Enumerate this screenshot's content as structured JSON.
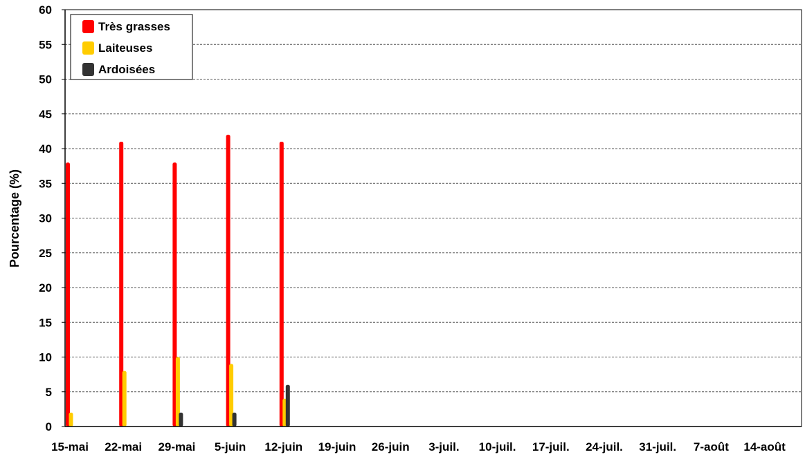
{
  "chart_data": {
    "type": "bar",
    "title": "",
    "xlabel": "",
    "ylabel": "Pourcentage (%)",
    "ylim": [
      0,
      60
    ],
    "yticks": [
      0,
      5,
      10,
      15,
      20,
      25,
      30,
      35,
      40,
      45,
      50,
      55,
      60
    ],
    "grid": true,
    "legend_position": "top-left",
    "categories": [
      "15-mai",
      "22-mai",
      "29-mai",
      "5-juin",
      "12-juin",
      "19-juin",
      "26-juin",
      "3-juil.",
      "10-juil.",
      "17-juil.",
      "24-juil.",
      "31-juil.",
      "7-août",
      "14-août"
    ],
    "series": [
      {
        "name": "Très grasses",
        "color": "#ff0000",
        "values": [
          38,
          41,
          38,
          42,
          41,
          null,
          null,
          null,
          null,
          null,
          null,
          null,
          null,
          null
        ]
      },
      {
        "name": "Laiteuses",
        "color": "#ffcc00",
        "values": [
          2,
          8,
          10,
          9,
          4,
          null,
          null,
          null,
          null,
          null,
          null,
          null,
          null,
          null
        ]
      },
      {
        "name": "Ardoisées",
        "color": "#333333",
        "values": [
          0,
          0,
          2,
          2,
          6,
          null,
          null,
          null,
          null,
          null,
          null,
          null,
          null,
          null
        ]
      }
    ]
  }
}
